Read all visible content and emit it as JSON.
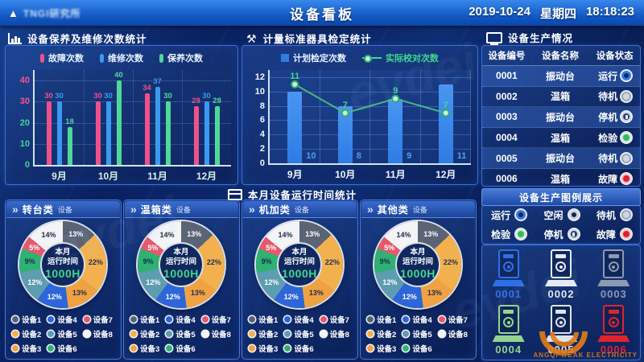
{
  "header": {
    "logo_text": "TNGI研究所",
    "title": "设备看板",
    "date": "2019-10-24",
    "weekday": "星期四",
    "time": "18:18:23"
  },
  "maintenance": {
    "title": "设备保养及维修次数统计",
    "chart_data": {
      "type": "bar",
      "categories": [
        "9月",
        "10月",
        "11月",
        "12月"
      ],
      "series": [
        {
          "name": "故障次数",
          "color": "#f0508a",
          "values": [
            30,
            30,
            34,
            28
          ]
        },
        {
          "name": "维修次数",
          "color": "#3a9af0",
          "values": [
            30,
            30,
            37,
            30
          ]
        },
        {
          "name": "保养次数",
          "color": "#4ed998",
          "values": [
            18,
            40,
            30,
            28
          ]
        }
      ],
      "ylim": [
        0,
        45
      ],
      "yticks": [
        {
          "v": 0,
          "color": "#3ed98e"
        },
        {
          "v": 10,
          "color": "#3ed98e"
        },
        {
          "v": 20,
          "color": "#3ed98e"
        },
        {
          "v": 30,
          "color": "#ff5090"
        },
        {
          "v": 40,
          "color": "#ff5090"
        }
      ],
      "grid": "dotted",
      "legend_position": "top"
    }
  },
  "calibration": {
    "title": "计量标准器具检定统计",
    "chart_data": {
      "type": "bar+line",
      "categories": [
        "9月",
        "10月",
        "11月",
        "12月"
      ],
      "bar_series": {
        "name": "计划检定次数",
        "color": "#2e7ce4",
        "values": [
          10,
          8,
          9,
          11
        ]
      },
      "line_series": {
        "name": "实际校对次数",
        "color": "#3ed98e",
        "values": [
          11,
          7,
          9,
          7
        ]
      },
      "ylim": [
        0,
        13
      ],
      "yticks": [
        0,
        2,
        4,
        6,
        8,
        10,
        12
      ],
      "grid": "solid",
      "legend_position": "top"
    }
  },
  "production": {
    "title": "设备生产情况",
    "columns": [
      "设备编号",
      "设备名称",
      "设备状态"
    ],
    "rows": [
      {
        "id": "0001",
        "name": "振动台",
        "status": "运行",
        "key": "run"
      },
      {
        "id": "0002",
        "name": "温箱",
        "status": "待机",
        "key": "standby"
      },
      {
        "id": "0003",
        "name": "振动台",
        "status": "停机",
        "key": "pause"
      },
      {
        "id": "0004",
        "name": "温箱",
        "status": "检验",
        "key": "inspect"
      },
      {
        "id": "0005",
        "name": "振动台",
        "status": "待机",
        "key": "standby"
      },
      {
        "id": "0006",
        "name": "温箱",
        "status": "故障",
        "key": "fault"
      }
    ]
  },
  "status_legend": {
    "title": "设备生产图例展示",
    "items": [
      {
        "label": "运行",
        "key": "run"
      },
      {
        "label": "空闲",
        "key": "idle"
      },
      {
        "label": "待机",
        "key": "standby"
      },
      {
        "label": "检验",
        "key": "inspect"
      },
      {
        "label": "停机",
        "key": "pause"
      },
      {
        "label": "故障",
        "key": "fault"
      }
    ]
  },
  "devices": {
    "items": [
      {
        "id": "0001",
        "state": "运行",
        "key": "run",
        "color": "#2e6fe8"
      },
      {
        "id": "0002",
        "state": "待机",
        "key": "standby",
        "color": "#e6ebf3"
      },
      {
        "id": "0003",
        "state": "停机",
        "key": "pause",
        "color": "#8d9ab0"
      },
      {
        "id": "0004",
        "state": "检验",
        "key": "inspect",
        "color": "#93d48e"
      },
      {
        "id": "0005",
        "state": "待机",
        "key": "standby",
        "color": "#dde4ee"
      },
      {
        "id": "0006",
        "state": "故障",
        "key": "fault",
        "color": "#e0242e"
      }
    ]
  },
  "runtime": {
    "title": "本月设备运行时间统计",
    "category_suffix": "设备",
    "categories": [
      "转台类",
      "温箱类",
      "机加类",
      "其他类"
    ],
    "chart_data": {
      "type": "pie",
      "donut": true,
      "center_lines": [
        "本月",
        "运行时间"
      ],
      "center_value": "1000H",
      "segments": [
        {
          "label": "设备1",
          "pct": 13,
          "color": "#5a6475",
          "text": "#ffffff"
        },
        {
          "label": "设备2",
          "pct": 22,
          "color": "#f2b14e",
          "text": "#23304a"
        },
        {
          "label": "设备3",
          "pct": 13,
          "color": "#f0a243",
          "text": "#23304a"
        },
        {
          "label": "设备4",
          "pct": 12,
          "color": "#2d66d8",
          "text": "#ffffff"
        },
        {
          "label": "设备5",
          "pct": 12,
          "color": "#5d9db0",
          "text": "#ffffff"
        },
        {
          "label": "设备6",
          "pct": 9,
          "color": "#2fb173",
          "text": "#16314a"
        },
        {
          "label": "设备7",
          "pct": 5,
          "color": "#e45a6d",
          "text": "#ffffff"
        },
        {
          "label": "设备8",
          "pct": 14,
          "color": "#f2f4f6",
          "text": "#23304a"
        }
      ]
    }
  },
  "watermark": {
    "brand": "ANGQI WEAK ELECTRICITY",
    "faint": "evdei"
  }
}
